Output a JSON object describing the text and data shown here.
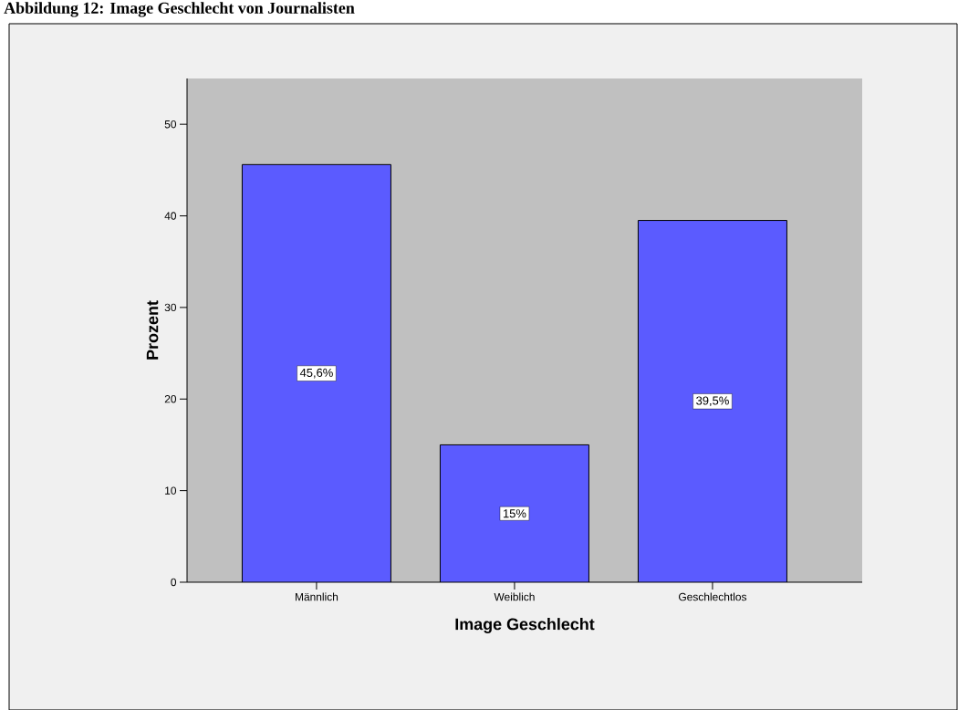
{
  "chart_data": {
    "type": "bar",
    "title": "Abbildung 12: Image Geschlecht von Journalisten",
    "xlabel": "Image Geschlecht",
    "ylabel": "Prozent",
    "categories": [
      "Männlich",
      "Weiblich",
      "Geschlechtlos"
    ],
    "values": [
      45.6,
      15,
      39.5
    ],
    "color": "#5b5bff",
    "value_labels": [
      "45,6%",
      "15%",
      "39,5%"
    ],
    "ylim": [
      0,
      55
    ],
    "yticks": [
      0,
      10,
      20,
      30,
      40,
      50
    ]
  }
}
